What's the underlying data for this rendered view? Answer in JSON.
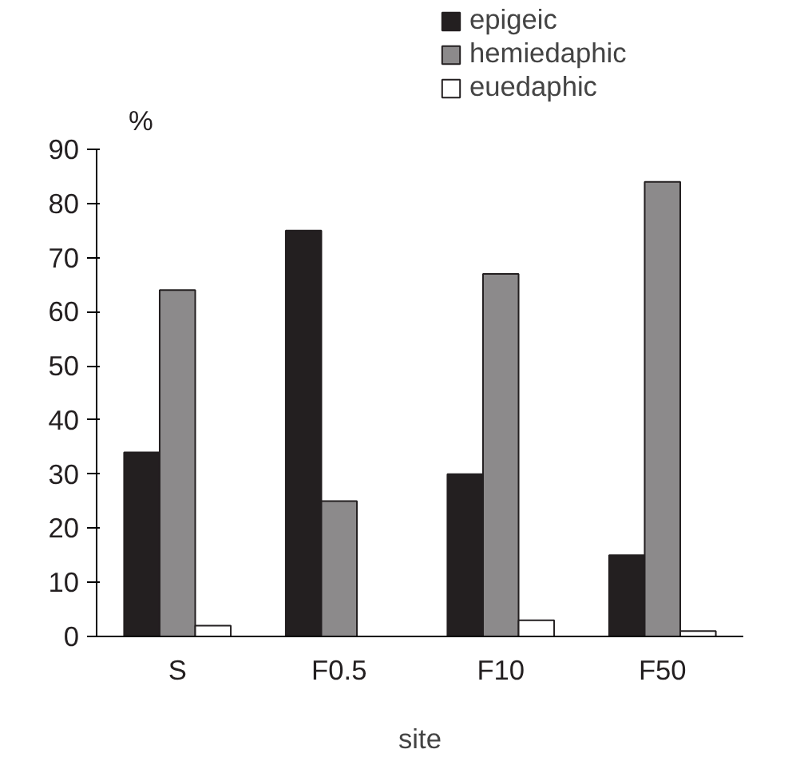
{
  "chart_data": {
    "type": "bar",
    "xlabel": "site",
    "ylabel": "%",
    "categories": [
      "S",
      "F0.5",
      "F10",
      "F50"
    ],
    "series": [
      {
        "name": "epigeic",
        "color": "#231f20",
        "values": [
          34,
          75,
          30,
          15
        ]
      },
      {
        "name": "hemiedaphic",
        "color": "#8c8a8b",
        "values": [
          64,
          25,
          67,
          84
        ]
      },
      {
        "name": "euedaphic",
        "color": "#ffffff",
        "values": [
          2,
          0,
          3,
          1
        ]
      }
    ],
    "ylim": [
      0,
      90
    ],
    "yticks": [
      0,
      10,
      20,
      30,
      40,
      50,
      60,
      70,
      80,
      90
    ],
    "grid": false,
    "legend": "top right"
  }
}
